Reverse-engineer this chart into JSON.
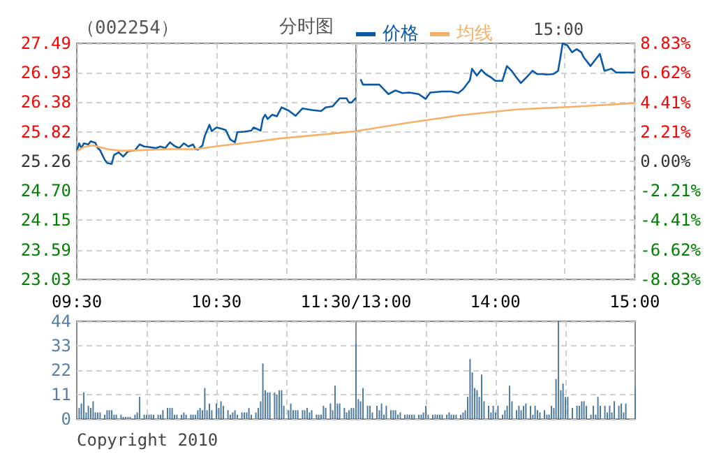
{
  "chart_data": [
    {
      "type": "line",
      "title": "（002254）",
      "subtitle": "分时图",
      "grid": true,
      "xlim": [
        9.5,
        11.5
      ],
      "xticks": [
        {
          "value": 9.5,
          "label": "09:30"
        },
        {
          "value": 10,
          "label": null
        },
        {
          "value": 10.5,
          "label": "10:30"
        },
        {
          "value": 11,
          "label": null
        },
        {
          "value": 11.5,
          "label": "11:30/13:00"
        }
      ],
      "ylim": [
        23.03,
        27.49
      ],
      "yticks": [
        {
          "value": 23.03,
          "label": "23.03"
        },
        {
          "value": 23.59,
          "label": "23.59"
        },
        {
          "value": 24.15,
          "label": "24.15"
        },
        {
          "value": 24.7,
          "label": "24.70"
        },
        {
          "value": 25.26,
          "label": "25.26"
        },
        {
          "value": 25.82,
          "label": "25.82"
        },
        {
          "value": 26.38,
          "label": "26.38"
        },
        {
          "value": 26.93,
          "label": "26.93"
        },
        {
          "value": 27.49,
          "label": "27.49"
        }
      ],
      "series": [
        {
          "color": "#0b5aa6",
          "x": [
            9.5,
            9.517,
            9.533,
            9.55,
            9.583,
            9.6,
            9.633,
            9.65,
            9.667,
            9.7,
            9.717,
            9.75,
            9.767,
            9.8,
            9.833,
            9.867,
            9.917,
            9.95,
            9.983,
            10.017,
            10.067,
            10.1,
            10.133,
            10.167,
            10.2,
            10.233,
            10.267,
            10.3,
            10.333,
            10.35,
            10.367,
            10.4,
            10.417,
            10.45,
            10.467,
            10.5,
            10.533,
            10.567,
            10.6,
            10.633,
            10.65,
            10.7,
            10.75,
            10.767,
            10.817,
            10.833,
            10.85,
            10.867,
            10.9,
            10.933,
            10.967,
            11.017,
            11.067,
            11.117,
            11.183,
            11.25,
            11.283,
            11.333,
            11.383,
            11.433,
            11.45,
            11.467,
            11.5
          ],
          "values": [
            25.45,
            25.6,
            25.51,
            25.6,
            25.58,
            25.64,
            25.61,
            25.51,
            25.47,
            25.29,
            25.23,
            25.21,
            25.38,
            25.43,
            25.35,
            25.45,
            25.47,
            25.58,
            25.54,
            25.53,
            25.51,
            25.54,
            25.51,
            25.62,
            25.55,
            25.51,
            25.6,
            25.54,
            25.58,
            25.49,
            25.48,
            25.56,
            25.74,
            25.95,
            25.83,
            25.9,
            25.88,
            25.85,
            25.67,
            25.62,
            25.81,
            25.82,
            25.84,
            25.9,
            25.84,
            26.07,
            26.14,
            26.06,
            26.14,
            26.11,
            26.28,
            26.22,
            26.12,
            26.26,
            26.23,
            26.21,
            26.28,
            26.3,
            26.45,
            26.45,
            26.37,
            26.37,
            26.46
          ]
        },
        {
          "color": "#f5b06a",
          "x": [
            9.5,
            9.55,
            9.617,
            9.717,
            9.817,
            9.95,
            10.15,
            10.35,
            10.55,
            10.75,
            10.95,
            11.15,
            11.35,
            11.5
          ],
          "values": [
            25.45,
            25.53,
            25.56,
            25.49,
            25.46,
            25.47,
            25.49,
            25.49,
            25.56,
            25.62,
            25.69,
            25.74,
            25.79,
            25.83
          ]
        }
      ]
    },
    {
      "type": "line",
      "annotations": [
        "15:00"
      ],
      "legend": "top",
      "grid": true,
      "tick_labels": "x",
      "xlim": [
        13,
        15
      ],
      "xticks": [
        {
          "value": 13.5,
          "label": null
        },
        {
          "value": 14,
          "label": "14:00"
        },
        {
          "value": 14.5,
          "label": null
        },
        {
          "value": 15,
          "label": "15:00"
        }
      ],
      "ylim": [
        23.03,
        27.49
      ],
      "yticks": [
        23.03,
        23.59,
        24.15,
        24.7,
        25.26,
        25.82,
        26.38,
        26.93,
        27.49
      ],
      "y2lim": [
        -8.83,
        8.83
      ],
      "y2ticks": [
        {
          "value": -8.83,
          "label": "-8.83%"
        },
        {
          "value": -6.62,
          "label": "-6.62%"
        },
        {
          "value": -4.41,
          "label": "-4.41%"
        },
        {
          "value": -2.21,
          "label": "-2.21%"
        },
        {
          "value": 0,
          "label": "0.00%"
        },
        {
          "value": 2.21,
          "label": "2.21%"
        },
        {
          "value": 4.41,
          "label": "4.41%"
        },
        {
          "value": 6.62,
          "label": "6.62%"
        },
        {
          "value": 8.83,
          "label": "8.83%"
        }
      ],
      "series": [
        {
          "name": "价格",
          "color": "#0b5aa6",
          "x": [
            13.033,
            13.05,
            13.1,
            13.167,
            13.233,
            13.283,
            13.333,
            13.383,
            13.45,
            13.5,
            13.533,
            13.617,
            13.683,
            13.733,
            13.767,
            13.817,
            13.833,
            13.867,
            13.9,
            13.933,
            13.967,
            14,
            14.05,
            14.083,
            14.117,
            14.15,
            14.183,
            14.217,
            14.267,
            14.3,
            14.333,
            14.367,
            14.417,
            14.45,
            14.467,
            14.483,
            14.517,
            14.55,
            14.583,
            14.617,
            14.633,
            14.683,
            14.717,
            14.75,
            14.783,
            14.833,
            14.867,
            14.917,
            15
          ],
          "values": [
            26.81,
            26.71,
            26.71,
            26.71,
            26.53,
            26.6,
            26.55,
            26.56,
            26.53,
            26.44,
            26.56,
            26.58,
            26.58,
            26.55,
            26.62,
            26.79,
            27.01,
            26.88,
            26.99,
            26.9,
            26.85,
            26.78,
            26.78,
            27.06,
            26.97,
            26.85,
            26.74,
            26.83,
            26.97,
            26.91,
            26.91,
            26.9,
            26.91,
            26.97,
            27.23,
            27.49,
            27.45,
            27.32,
            27.38,
            27.32,
            27.23,
            27.06,
            27.18,
            27.29,
            26.97,
            27.01,
            26.94,
            26.94,
            26.94
          ]
        },
        {
          "name": "均线",
          "color": "#f5b06a",
          "x": [
            13,
            13.35,
            13.75,
            14.15,
            14.55,
            15
          ],
          "values": [
            25.83,
            25.98,
            26.13,
            26.24,
            26.29,
            26.36
          ]
        }
      ]
    },
    {
      "type": "bar",
      "grid": true,
      "tick_labels": "y",
      "annotations": [
        "Copyright 2010"
      ],
      "color": "#4f7ba1",
      "xlim": [
        9.5,
        11.5
      ],
      "xticks": [
        10,
        10.5,
        11
      ],
      "ylim": [
        0,
        44
      ],
      "yticks": [
        0,
        11,
        22,
        33,
        44
      ],
      "x": [
        9.517,
        9.533,
        9.55,
        9.567,
        9.583,
        9.6,
        9.617,
        9.633,
        9.65,
        9.667,
        9.7,
        9.717,
        9.733,
        9.75,
        9.767,
        9.783,
        9.817,
        9.833,
        9.85,
        9.867,
        9.883,
        9.917,
        9.933,
        9.95,
        9.983,
        10,
        10.017,
        10.033,
        10.05,
        10.083,
        10.1,
        10.117,
        10.15,
        10.167,
        10.183,
        10.2,
        10.217,
        10.25,
        10.267,
        10.283,
        10.317,
        10.333,
        10.35,
        10.367,
        10.383,
        10.4,
        10.417,
        10.433,
        10.45,
        10.467,
        10.5,
        10.517,
        10.533,
        10.55,
        10.583,
        10.6,
        10.617,
        10.633,
        10.65,
        10.683,
        10.7,
        10.717,
        10.733,
        10.75,
        10.783,
        10.8,
        10.817,
        10.833,
        10.85,
        10.867,
        10.883,
        10.917,
        10.933,
        10.95,
        10.967,
        10.983,
        11.017,
        11.033,
        11.05,
        11.067,
        11.083,
        11.117,
        11.133,
        11.15,
        11.167,
        11.183,
        11.217,
        11.233,
        11.25,
        11.267,
        11.283,
        11.317,
        11.333,
        11.35,
        11.367,
        11.383,
        11.417,
        11.433,
        11.45,
        11.467,
        11.483,
        11.5
      ],
      "values": [
        5,
        7,
        12,
        3,
        6,
        5,
        8,
        3,
        3,
        3,
        2,
        4,
        4,
        4,
        2,
        2,
        2,
        1,
        1,
        1,
        1,
        2,
        3,
        10,
        2,
        2,
        2,
        2,
        2,
        2,
        2,
        4,
        5,
        5,
        5,
        2,
        2,
        2,
        3,
        2,
        2,
        2,
        2,
        4,
        5,
        4,
        14,
        4,
        7,
        4,
        7,
        5,
        8,
        6,
        4,
        2,
        3,
        4,
        2,
        3,
        3,
        3,
        5,
        2,
        3,
        5,
        8,
        25,
        13,
        12,
        12,
        12,
        11,
        13,
        13,
        6,
        4,
        7,
        4,
        4,
        4,
        4,
        4,
        5,
        3,
        4,
        2,
        2,
        2,
        6,
        5,
        7,
        4,
        15,
        7,
        7,
        5,
        3,
        4,
        5,
        5,
        34
      ]
    },
    {
      "type": "bar",
      "grid": true,
      "tick_labels": false,
      "color": "#4f7ba1",
      "xlim": [
        13,
        15
      ],
      "xticks": [
        13.5,
        14,
        14.5
      ],
      "ylim": [
        0,
        44
      ],
      "yticks": [
        0,
        11,
        22,
        33,
        44
      ],
      "x": [
        13.017,
        13.033,
        13.05,
        13.083,
        13.1,
        13.117,
        13.15,
        13.167,
        13.183,
        13.2,
        13.217,
        13.25,
        13.267,
        13.283,
        13.3,
        13.317,
        13.35,
        13.367,
        13.383,
        13.4,
        13.417,
        13.45,
        13.467,
        13.483,
        13.5,
        13.517,
        13.55,
        13.567,
        13.583,
        13.6,
        13.617,
        13.65,
        13.667,
        13.683,
        13.7,
        13.717,
        13.75,
        13.767,
        13.783,
        13.8,
        13.817,
        13.833,
        13.85,
        13.867,
        13.883,
        13.9,
        13.917,
        13.95,
        13.967,
        13.983,
        14,
        14.017,
        14.05,
        14.067,
        14.083,
        14.1,
        14.117,
        14.15,
        14.167,
        14.183,
        14.2,
        14.217,
        14.25,
        14.267,
        14.283,
        14.3,
        14.317,
        14.35,
        14.367,
        14.383,
        14.4,
        14.417,
        14.433,
        14.45,
        14.467,
        14.483,
        14.5,
        14.517,
        14.55,
        14.583,
        14.6,
        14.617,
        14.633,
        14.65,
        14.683,
        14.7,
        14.717,
        14.733,
        14.75,
        14.783,
        14.8,
        14.817,
        14.833,
        14.85,
        14.883,
        14.9,
        14.917,
        14.933,
        15
      ],
      "values": [
        9,
        8,
        14,
        6,
        6,
        3,
        6,
        4,
        7,
        2,
        6,
        4,
        4,
        4,
        2,
        3,
        2,
        2,
        2,
        2,
        2,
        2,
        2,
        3,
        6,
        2,
        2,
        2,
        2,
        2,
        2,
        2,
        3,
        2,
        2,
        2,
        2,
        3,
        4,
        10,
        27,
        21,
        14,
        13,
        10,
        20,
        8,
        6,
        3,
        6,
        3,
        6,
        2,
        4,
        6,
        15,
        8,
        4,
        6,
        4,
        6,
        7,
        6,
        2,
        6,
        4,
        3,
        4,
        2,
        2,
        6,
        5,
        18,
        44,
        13,
        16,
        10,
        10,
        5,
        6,
        6,
        8,
        8,
        6,
        2,
        6,
        2,
        10,
        6,
        6,
        3,
        6,
        3,
        8,
        6,
        7,
        3,
        7,
        14
      ]
    }
  ]
}
